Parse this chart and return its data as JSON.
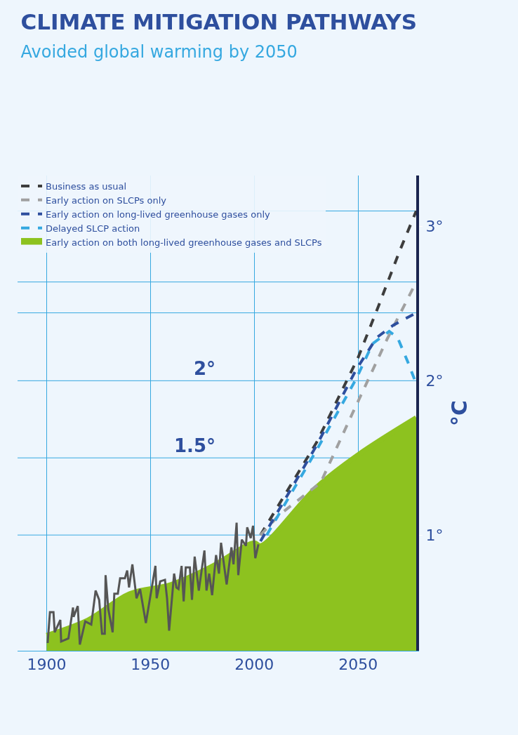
{
  "chart_data": {
    "type": "line",
    "title": "CLIMATE MITIGATION PATHWAYS",
    "subtitle": "Avoided global warming by 2050",
    "ylabel": "°C",
    "xlim": [
      1886,
      2078
    ],
    "xticks": [
      1900,
      1950,
      2000,
      2050
    ],
    "ylim": [
      0.25,
      3.33
    ],
    "yticks": [
      {
        "value": 1,
        "label": "1°"
      },
      {
        "value": 2,
        "label": "2°"
      },
      {
        "value": 3,
        "label": "3°"
      }
    ],
    "grid": "x",
    "legend": "top left",
    "ref_lines": [
      {
        "axis": "y",
        "value": 3.1,
        "label": null,
        "color": "#35a8e0"
      },
      {
        "axis": "y",
        "value": 2.64,
        "label": null,
        "color": "#35a8e0"
      },
      {
        "axis": "y",
        "value": 2.44,
        "label": null,
        "color": "#35a8e0"
      },
      {
        "axis": "y",
        "value": 2.0,
        "label": "2°",
        "color": "#35a8e0"
      },
      {
        "axis": "y",
        "value": 1.5,
        "label": "1.5°",
        "color": "#35a8e0"
      },
      {
        "axis": "y",
        "value": 1.0,
        "label": null,
        "color": "#35a8e0"
      }
    ],
    "series": [
      {
        "name": "Early action on both long-lived greenhouse gases and SLCPs",
        "type": "area",
        "color": "#8dc21f",
        "x": [
          1900,
          1920,
          1940,
          1960,
          1980,
          2000,
          2003,
          2030,
          2050,
          2078
        ],
        "values": [
          0.35,
          0.45,
          0.62,
          0.68,
          0.8,
          0.95,
          0.93,
          1.31,
          1.52,
          1.76
        ]
      },
      {
        "line_style": "solid",
        "color": "#555555",
        "x": [
          1900.5,
          1901.6,
          1903.3,
          1903.9,
          1906.6,
          1907,
          1910.5,
          1912.7,
          1913,
          1915,
          1916,
          1918.6,
          1921.5,
          1923.6,
          1925.3,
          1926.7,
          1928,
          1928.4,
          1929.7,
          1931.8,
          1932.6,
          1934.3,
          1935.4,
          1937.7,
          1938.8,
          1939.7,
          1941.3,
          1943.3,
          1945,
          1947.8,
          1952.4,
          1953,
          1954.7,
          1957,
          1958,
          1959,
          1961.4,
          1962.5,
          1963.5,
          1965,
          1966,
          1967,
          1969,
          1970,
          1971.3,
          1973.3,
          1976,
          1977,
          1978.3,
          1979.7,
          1981.6,
          1983,
          1984,
          1986.7,
          1989,
          1990,
          1991.5,
          1992.3,
          1994,
          1996,
          1996.6,
          1998.3,
          1999.4,
          2000.5,
          2002
        ],
        "values": [
          0.3,
          0.5,
          0.5,
          0.37,
          0.45,
          0.31,
          0.33,
          0.53,
          0.47,
          0.54,
          0.29,
          0.44,
          0.42,
          0.64,
          0.58,
          0.36,
          0.36,
          0.74,
          0.52,
          0.37,
          0.62,
          0.62,
          0.72,
          0.72,
          0.77,
          0.66,
          0.81,
          0.59,
          0.65,
          0.43,
          0.8,
          0.59,
          0.7,
          0.71,
          0.59,
          0.38,
          0.75,
          0.66,
          0.65,
          0.8,
          0.57,
          0.79,
          0.79,
          0.58,
          0.86,
          0.64,
          0.9,
          0.64,
          0.75,
          0.61,
          0.87,
          0.75,
          0.95,
          0.68,
          0.92,
          0.81,
          1.08,
          0.74,
          0.97,
          0.93,
          1.05,
          0.98,
          1.06,
          0.85,
          0.94
        ]
      },
      {
        "name": "Business as usual",
        "line_style": "dashed",
        "color": "#3d3d3d",
        "x": [
          2003,
          2030,
          2050,
          2060,
          2070,
          2078
        ],
        "values": [
          1.0,
          1.6,
          2.15,
          2.49,
          2.84,
          3.1
        ]
      },
      {
        "name": "Early action on SLCPs only",
        "line_style": "dashed",
        "color": "#a0a0a0",
        "x": [
          2003,
          2012,
          2032,
          2047,
          2064,
          2078
        ],
        "values": [
          1.0,
          1.13,
          1.34,
          1.78,
          2.27,
          2.64
        ]
      },
      {
        "name": "Early action on long-lived greenhouse gases only",
        "line_style": "dashed",
        "color": "#2e4f9e",
        "x": [
          2003,
          2030,
          2049,
          2059,
          2067,
          2078
        ],
        "values": [
          0.96,
          1.58,
          2.07,
          2.28,
          2.36,
          2.44
        ]
      },
      {
        "name": "Delayed SLCP action",
        "line_style": "dashed",
        "color": "#35a8e0",
        "x": [
          2006,
          2030,
          2049,
          2057,
          2065,
          2069,
          2074,
          2078
        ],
        "values": [
          1.0,
          1.55,
          2.01,
          2.24,
          2.32,
          2.28,
          2.12,
          1.98
        ]
      }
    ]
  }
}
